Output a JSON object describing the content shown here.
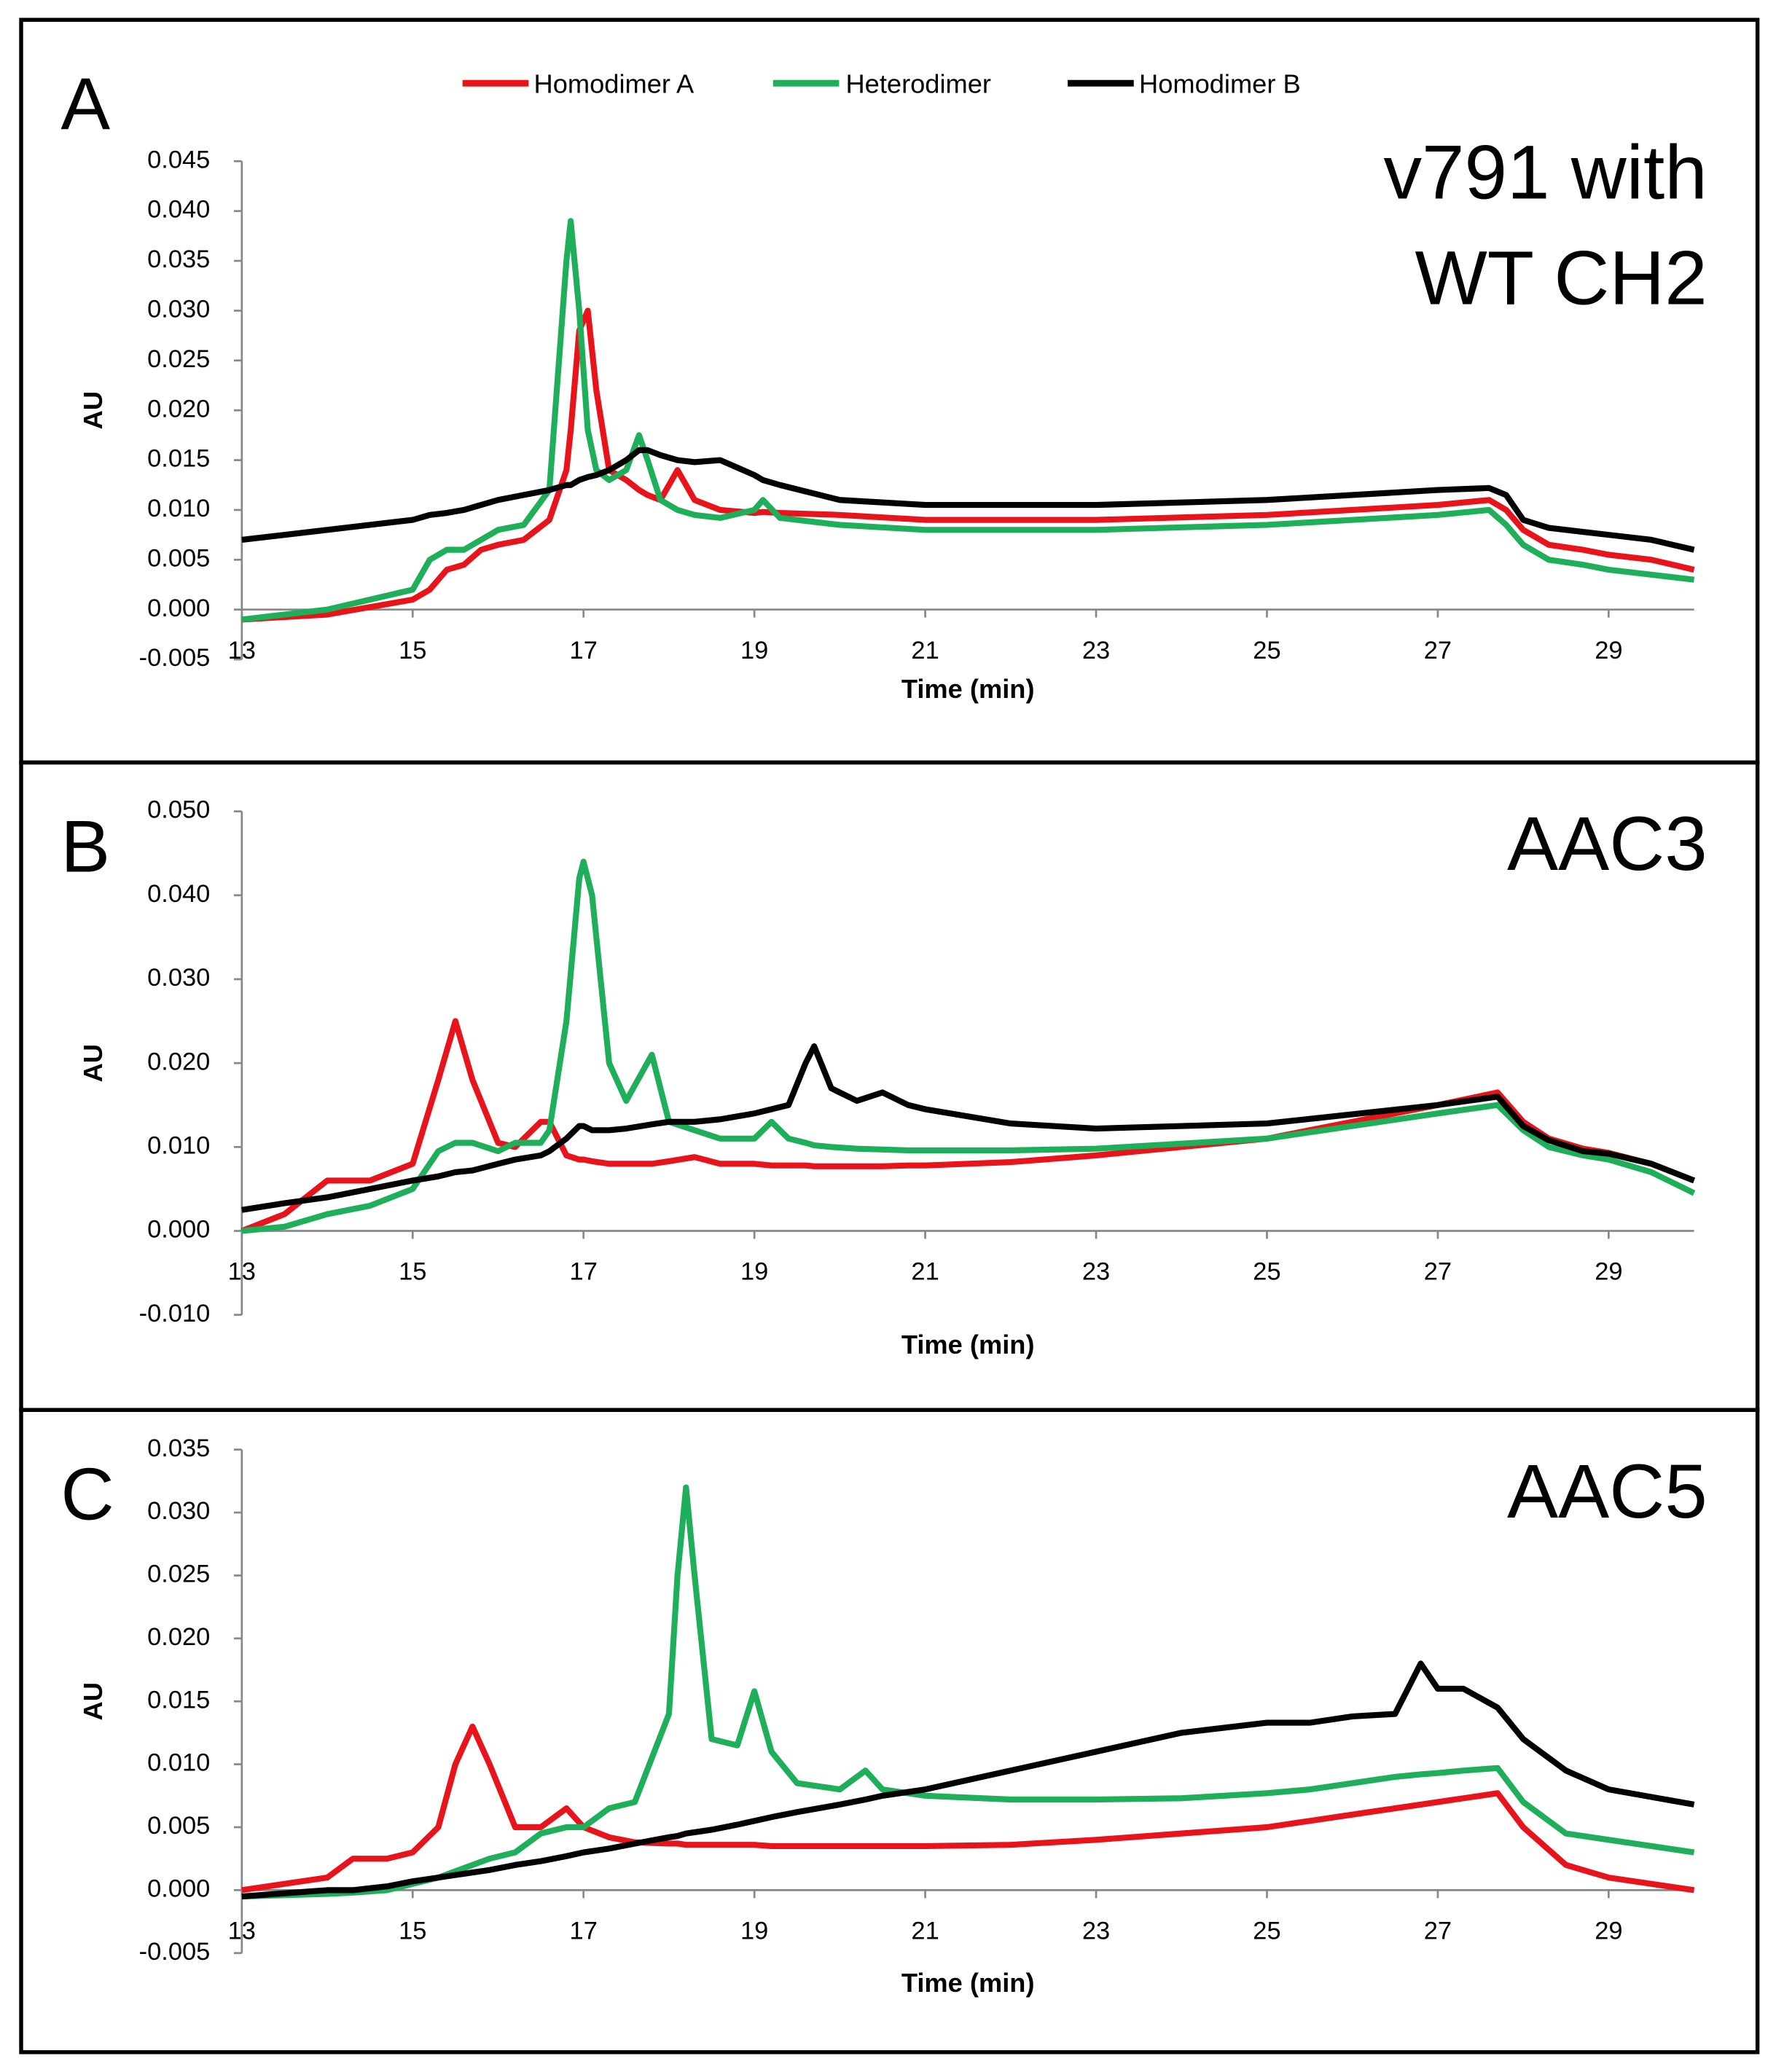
{
  "chart_data": [
    {
      "type": "line",
      "panel": "A",
      "annotation": [
        "v791 with",
        "WT CH2"
      ],
      "x_label": "Time (min)",
      "y_label": "AU",
      "legend": "top-center",
      "x": [
        13,
        14,
        15,
        15.2,
        15.4,
        15.6,
        15.8,
        16,
        16.3,
        16.6,
        16.8,
        16.85,
        16.95,
        17.05,
        17.15,
        17.3,
        17.5,
        17.65,
        17.75,
        17.9,
        18.1,
        18.3,
        18.6,
        19,
        19.1,
        19.3,
        20,
        21,
        23,
        25,
        27,
        27.6,
        27.8,
        28,
        28.3,
        28.7,
        29,
        29.5,
        30
      ],
      "series": [
        {
          "name": "Homodimer A",
          "color": "#e8141c",
          "values": [
            -0.001,
            -0.0005,
            0.001,
            0.002,
            0.004,
            0.0045,
            0.006,
            0.0065,
            0.007,
            0.009,
            0.014,
            0.018,
            0.028,
            0.03,
            0.022,
            0.014,
            0.013,
            0.012,
            0.0115,
            0.011,
            0.014,
            0.011,
            0.01,
            0.0097,
            0.0098,
            0.0097,
            0.0095,
            0.009,
            0.009,
            0.0095,
            0.0105,
            0.011,
            0.01,
            0.008,
            0.0065,
            0.006,
            0.0055,
            0.005,
            0.004
          ]
        },
        {
          "name": "Heterodimer",
          "color": "#1fae5a",
          "values": [
            -0.001,
            0,
            0.002,
            0.005,
            0.006,
            0.006,
            0.007,
            0.008,
            0.0085,
            0.012,
            0.035,
            0.039,
            0.03,
            0.018,
            0.014,
            0.013,
            0.014,
            0.0175,
            0.015,
            0.011,
            0.01,
            0.0095,
            0.0092,
            0.01,
            0.011,
            0.0092,
            0.0085,
            0.008,
            0.008,
            0.0085,
            0.0095,
            0.01,
            0.0085,
            0.0065,
            0.005,
            0.0045,
            0.004,
            0.0035,
            0.003
          ]
        },
        {
          "name": "Homodimer B",
          "color": "#000000",
          "values": [
            0.007,
            0.008,
            0.009,
            0.0095,
            0.0097,
            0.01,
            0.0105,
            0.011,
            0.0115,
            0.012,
            0.0125,
            0.0125,
            0.013,
            0.0133,
            0.0135,
            0.014,
            0.015,
            0.016,
            0.016,
            0.0155,
            0.015,
            0.0148,
            0.015,
            0.0135,
            0.013,
            0.0125,
            0.011,
            0.0105,
            0.0105,
            0.011,
            0.012,
            0.0122,
            0.0115,
            0.009,
            0.0082,
            0.0078,
            0.0075,
            0.007,
            0.006
          ]
        }
      ],
      "xlim": [
        13,
        30
      ],
      "xticks": [
        13,
        15,
        17,
        19,
        21,
        23,
        25,
        27,
        29
      ],
      "ylim": [
        -0.005,
        0.045
      ],
      "yticks": [
        -0.005,
        {
          "value": 0,
          "label": "0.000"
        },
        0.005,
        {
          "value": 0.01,
          "label": "0.010"
        },
        0.015,
        {
          "value": 0.02,
          "label": "0.020"
        },
        0.025,
        {
          "value": 0.03,
          "label": "0.030"
        },
        0.035,
        {
          "value": 0.04,
          "label": "0.040"
        },
        0.045
      ]
    },
    {
      "type": "line",
      "panel": "B",
      "annotation": [
        "AAC3"
      ],
      "x_label": "Time (min)",
      "y_label": "AU",
      "x": [
        13,
        13.5,
        14,
        14.5,
        15,
        15.3,
        15.5,
        15.7,
        16,
        16.2,
        16.5,
        16.6,
        16.8,
        16.95,
        17,
        17.1,
        17.3,
        17.5,
        17.8,
        18,
        18.3,
        18.6,
        19,
        19.2,
        19.4,
        19.6,
        19.7,
        19.9,
        20.2,
        20.5,
        20.8,
        21,
        22,
        23,
        25,
        27,
        27.7,
        28,
        28.3,
        28.7,
        29,
        29.5,
        30
      ],
      "series": [
        {
          "color": "#e8141c",
          "values": [
            0,
            0.002,
            0.006,
            0.006,
            0.008,
            0.018,
            0.025,
            0.018,
            0.0105,
            0.01,
            0.013,
            0.013,
            0.009,
            0.0085,
            0.0085,
            0.0083,
            0.008,
            0.008,
            0.008,
            0.0083,
            0.0088,
            0.008,
            0.008,
            0.0078,
            0.0078,
            0.0078,
            0.0077,
            0.0077,
            0.0077,
            0.0077,
            0.0078,
            0.0078,
            0.0082,
            0.009,
            0.011,
            0.015,
            0.0165,
            0.013,
            0.011,
            0.0098,
            0.0093,
            0.008,
            0.006
          ]
        },
        {
          "color": "#1fae5a",
          "values": [
            0,
            0.0005,
            0.002,
            0.003,
            0.005,
            0.0095,
            0.0105,
            0.0105,
            0.0095,
            0.0105,
            0.0105,
            0.012,
            0.025,
            0.042,
            0.044,
            0.04,
            0.02,
            0.0155,
            0.021,
            0.013,
            0.012,
            0.011,
            0.011,
            0.013,
            0.011,
            0.0105,
            0.0102,
            0.01,
            0.0098,
            0.0097,
            0.0096,
            0.0096,
            0.0096,
            0.0098,
            0.011,
            0.014,
            0.015,
            0.012,
            0.01,
            0.009,
            0.0085,
            0.007,
            0.0045
          ]
        },
        {
          "color": "#000000",
          "values": [
            0.0025,
            0.0033,
            0.004,
            0.005,
            0.006,
            0.0065,
            0.007,
            0.0072,
            0.008,
            0.0085,
            0.009,
            0.0095,
            0.011,
            0.0125,
            0.0125,
            0.012,
            0.012,
            0.0122,
            0.0127,
            0.013,
            0.013,
            0.0133,
            0.014,
            0.0145,
            0.015,
            0.02,
            0.022,
            0.017,
            0.0155,
            0.0165,
            0.015,
            0.0145,
            0.0128,
            0.0122,
            0.0128,
            0.015,
            0.016,
            0.0125,
            0.0108,
            0.0095,
            0.0092,
            0.008,
            0.006
          ]
        }
      ],
      "xlim": [
        13,
        30
      ],
      "xticks": [
        13,
        15,
        17,
        19,
        21,
        23,
        25,
        27,
        29
      ],
      "ylim": [
        -0.01,
        0.05
      ],
      "yticks": [
        {
          "value": -0.01,
          "label": "-0.010"
        },
        {
          "value": 0,
          "label": "0.000"
        },
        {
          "value": 0.01,
          "label": "0.010"
        },
        {
          "value": 0.02,
          "label": "0.020"
        },
        {
          "value": 0.03,
          "label": "0.030"
        },
        {
          "value": 0.04,
          "label": "0.040"
        },
        {
          "value": 0.05,
          "label": "0.050"
        }
      ]
    },
    {
      "type": "line",
      "panel": "C",
      "annotation": [
        "AAC5"
      ],
      "x_label": "Time (min)",
      "y_label": "AU",
      "x": [
        13,
        14,
        14.3,
        14.7,
        15,
        15.3,
        15.5,
        15.7,
        15.9,
        16.2,
        16.5,
        16.8,
        17,
        17.3,
        17.6,
        18,
        18.1,
        18.2,
        18.3,
        18.5,
        18.8,
        19,
        19.2,
        19.5,
        20,
        20.3,
        20.5,
        21,
        22,
        23,
        24,
        25,
        25.5,
        26,
        26.5,
        26.8,
        27,
        27.3,
        27.7,
        28,
        28.5,
        29,
        30
      ],
      "series": [
        {
          "color": "#e8141c",
          "values": [
            0,
            0.001,
            0.0025,
            0.0025,
            0.003,
            0.005,
            0.01,
            0.013,
            0.01,
            0.005,
            0.005,
            0.0065,
            0.005,
            0.0042,
            0.0038,
            0.0037,
            0.0037,
            0.0036,
            0.0036,
            0.0036,
            0.0036,
            0.0036,
            0.0035,
            0.0035,
            0.0035,
            0.0035,
            0.0035,
            0.0035,
            0.0036,
            0.004,
            0.0045,
            0.005,
            0.0055,
            0.006,
            0.0065,
            0.0068,
            0.007,
            0.0073,
            0.0077,
            0.005,
            0.002,
            0.001,
            0
          ]
        },
        {
          "color": "#1fae5a",
          "values": [
            -0.0005,
            -0.0003,
            -0.0002,
            0,
            0.0005,
            0.001,
            0.0015,
            0.002,
            0.0025,
            0.003,
            0.0045,
            0.005,
            0.005,
            0.0065,
            0.007,
            0.014,
            0.025,
            0.032,
            0.025,
            0.012,
            0.0115,
            0.0158,
            0.011,
            0.0085,
            0.008,
            0.0095,
            0.008,
            0.0075,
            0.0072,
            0.0072,
            0.0073,
            0.0077,
            0.008,
            0.0085,
            0.009,
            0.0092,
            0.0093,
            0.0095,
            0.0097,
            0.007,
            0.0045,
            0.004,
            0.003
          ]
        },
        {
          "color": "#000000",
          "values": [
            -0.0005,
            0,
            0,
            0.0003,
            0.0007,
            0.001,
            0.0012,
            0.0014,
            0.0016,
            0.002,
            0.0023,
            0.0027,
            0.003,
            0.0033,
            0.0037,
            0.0042,
            0.0043,
            0.0045,
            0.0046,
            0.0048,
            0.0052,
            0.0055,
            0.0058,
            0.0062,
            0.0068,
            0.0072,
            0.0075,
            0.008,
            0.0095,
            0.011,
            0.0125,
            0.0133,
            0.0133,
            0.0138,
            0.014,
            0.018,
            0.016,
            0.016,
            0.0145,
            0.012,
            0.0095,
            0.008,
            0.0068
          ]
        }
      ],
      "xlim": [
        13,
        30
      ],
      "xticks": [
        13,
        15,
        17,
        19,
        21,
        23,
        25,
        27,
        29
      ],
      "ylim": [
        -0.005,
        0.035
      ],
      "yticks": [
        -0.005,
        {
          "value": 0,
          "label": "0.000"
        },
        0.005,
        {
          "value": 0.01,
          "label": "0.010"
        },
        0.015,
        {
          "value": 0.02,
          "label": "0.020"
        },
        0.025,
        {
          "value": 0.03,
          "label": "0.030"
        },
        0.035
      ]
    }
  ]
}
